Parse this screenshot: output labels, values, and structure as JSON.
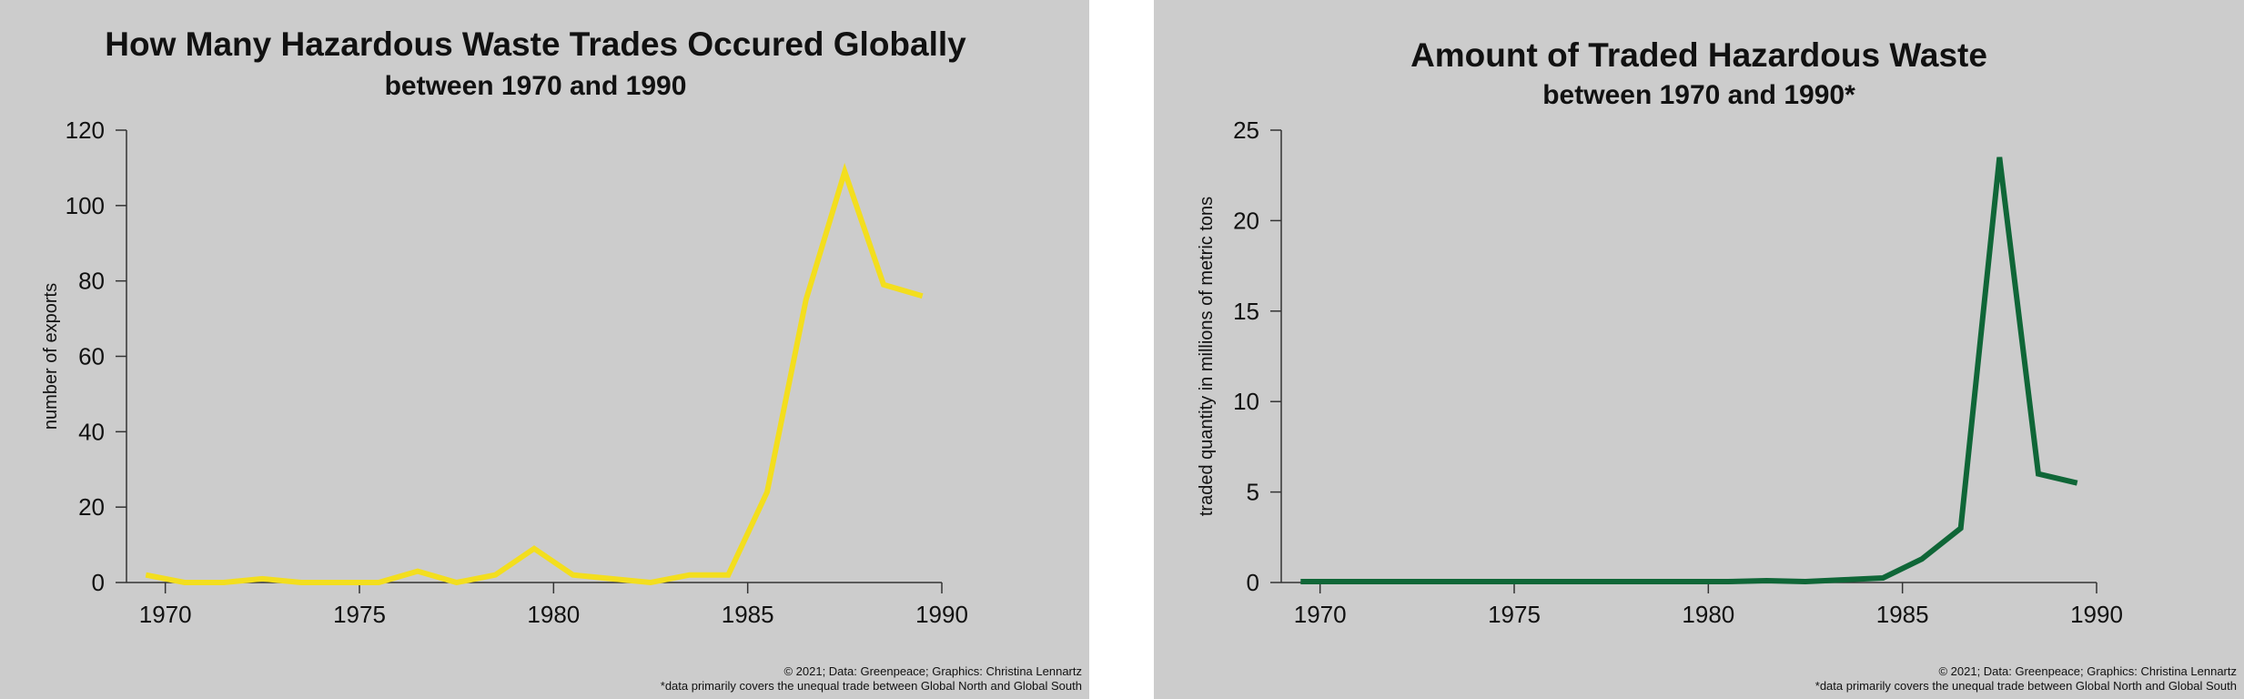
{
  "left": {
    "title": "How Many Hazardous Waste Trades Occured Globally",
    "subtitle": "between 1970 and 1990",
    "footer_credit": "© 2021; Data: Greenpeace; Graphics: Christina Lennartz",
    "footer_note": "*data primarily covers the unequal trade between Global North and Global South"
  },
  "right": {
    "title": "Amount of Traded Hazardous Waste",
    "subtitle": "between 1970 and 1990*",
    "footer_credit": "© 2021; Data: Greenpeace; Graphics: Christina Lennartz",
    "footer_note": "*data primarily covers the unequal trade between Global North and Global South"
  },
  "chart_data": [
    {
      "type": "line",
      "title": "How Many Hazardous Waste Trades Occured Globally",
      "subtitle": "between 1970 and 1990",
      "xlabel": "",
      "ylabel": "number of exports",
      "xlim": [
        1969,
        1990
      ],
      "ylim": [
        0,
        120
      ],
      "xticks": [
        1970,
        1975,
        1980,
        1985,
        1990
      ],
      "yticks": [
        0,
        20,
        40,
        60,
        80,
        100,
        120
      ],
      "grid": false,
      "line_color": "#f3de1e",
      "series": [
        {
          "x": [
            1969.5,
            1970.5,
            1971.5,
            1972.5,
            1973.5,
            1974.5,
            1975.5,
            1976.5,
            1977.5,
            1978.5,
            1979.5,
            1980.5,
            1981.5,
            1982.5,
            1983.5,
            1984.5,
            1985.5,
            1986.5,
            1987.5,
            1988.5,
            1989.5
          ],
          "values": [
            2,
            0,
            0,
            1,
            0,
            0,
            0,
            3,
            0,
            2,
            9,
            2,
            1,
            0,
            2,
            2,
            24,
            75,
            109,
            79,
            76
          ]
        }
      ]
    },
    {
      "type": "line",
      "title": "Amount of Traded Hazardous Waste",
      "subtitle": "between 1970 and 1990*",
      "xlabel": "",
      "ylabel": "traded quantity in millions of metric tons",
      "xlim": [
        1969,
        1990
      ],
      "ylim": [
        0,
        25
      ],
      "xticks": [
        1970,
        1975,
        1980,
        1985,
        1990
      ],
      "yticks": [
        0,
        5,
        10,
        15,
        20,
        25
      ],
      "grid": false,
      "line_color": "#0f6637",
      "series": [
        {
          "x": [
            1969.5,
            1970.5,
            1971.5,
            1972.5,
            1973.5,
            1974.5,
            1975.5,
            1976.5,
            1977.5,
            1978.5,
            1979.5,
            1980.5,
            1981.5,
            1982.5,
            1983.5,
            1984.5,
            1985.5,
            1986.5,
            1987.5,
            1988.5,
            1989.5
          ],
          "values": [
            0.05,
            0.05,
            0.05,
            0.05,
            0.05,
            0.05,
            0.05,
            0.05,
            0.05,
            0.05,
            0.05,
            0.05,
            0.1,
            0.05,
            0.15,
            0.25,
            1.3,
            3.0,
            23.5,
            6.0,
            5.5
          ]
        }
      ]
    }
  ]
}
